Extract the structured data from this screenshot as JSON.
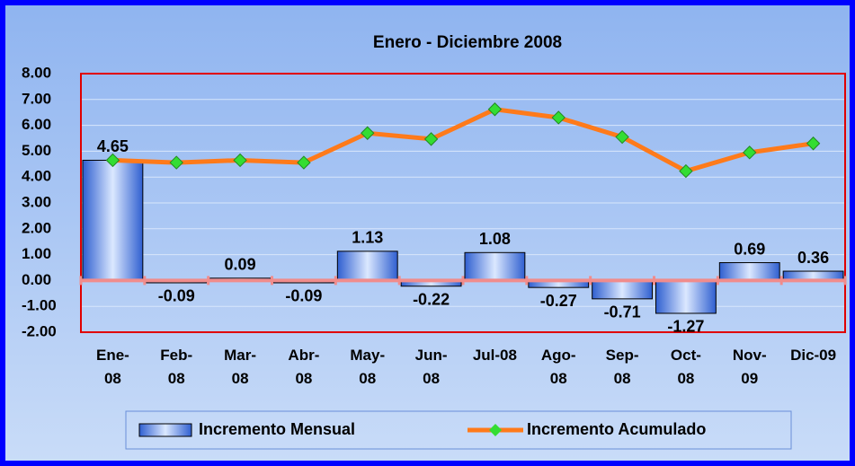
{
  "chart_data": {
    "type": "bar_line",
    "title": "Enero - Diciembre 2008",
    "categories": [
      "Ene-08",
      "Feb-08",
      "Mar-08",
      "Abr-08",
      "May-08",
      "Jun-08",
      "Jul-08",
      "Ago-08",
      "Sep-08",
      "Oct-08",
      "Nov-09",
      "Dic-09"
    ],
    "series": [
      {
        "name": "Incremento Mensual",
        "type": "bar",
        "color": "#5b8fe8",
        "values": [
          4.65,
          -0.09,
          0.09,
          -0.09,
          1.13,
          -0.22,
          1.08,
          -0.27,
          -0.71,
          -1.27,
          0.69,
          0.36
        ]
      },
      {
        "name": "Incremento Acumulado",
        "type": "line",
        "color": "#ff7a1a",
        "marker_color": "#33dd33",
        "values": [
          4.65,
          4.56,
          4.65,
          4.56,
          5.7,
          5.47,
          6.62,
          6.3,
          5.55,
          4.23,
          4.95,
          5.3
        ]
      }
    ],
    "ylim": [
      -2,
      8
    ],
    "yticks": [
      {
        "value": -2,
        "label": "-2.00"
      },
      {
        "value": -1,
        "label": "-1.00"
      },
      {
        "value": 0,
        "label": "0.00"
      },
      {
        "value": 1,
        "label": "1.00"
      },
      {
        "value": 2,
        "label": "2.00"
      },
      {
        "value": 3,
        "label": "3.00"
      },
      {
        "value": 4,
        "label": "4.00"
      },
      {
        "value": 5,
        "label": "5.00"
      },
      {
        "value": 6,
        "label": "6.00"
      },
      {
        "value": 7,
        "label": "7.00"
      },
      {
        "value": 8,
        "label": "8.00"
      }
    ],
    "grid": true,
    "legend": "bottom"
  }
}
